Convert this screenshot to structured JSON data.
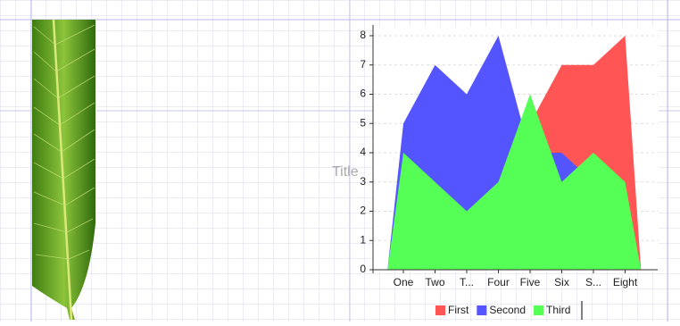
{
  "chart_data": {
    "type": "area",
    "title": "Title",
    "categories": [
      "One",
      "Two",
      "T...",
      "Four",
      "Five",
      "Six",
      "S...",
      "Eight"
    ],
    "series": [
      {
        "name": "First",
        "color": "#ff5555",
        "values": [
          3,
          4,
          3,
          4,
          5,
          7,
          7,
          8
        ]
      },
      {
        "name": "Second",
        "color": "#5555ff",
        "values": [
          5,
          7,
          6,
          8,
          4,
          4,
          3,
          2
        ]
      },
      {
        "name": "Third",
        "color": "#55ff55",
        "values": [
          4,
          3,
          2,
          3,
          6,
          3,
          4,
          3
        ]
      }
    ],
    "ylim": [
      0,
      8
    ],
    "yticks": [
      0,
      1,
      2,
      3,
      4,
      5,
      6,
      7,
      8
    ],
    "grid": true,
    "legend": "bottom"
  }
}
